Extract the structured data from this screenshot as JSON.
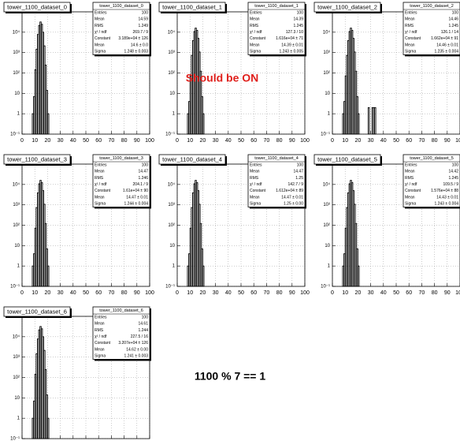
{
  "chart_data": [
    {
      "type": "histogram",
      "title": "tower_1100_dataset_0",
      "log_y": true,
      "grid": true,
      "color": "#000000",
      "bins": [
        8,
        9,
        10,
        11,
        12,
        13,
        14,
        15,
        16,
        17,
        18,
        19,
        20,
        21
      ],
      "values": [
        1,
        7,
        143,
        1470,
        7780,
        21600,
        31800,
        24600,
        10000,
        2140,
        245,
        14,
        1
      ],
      "xlim": [
        0,
        100
      ],
      "xticks": [
        0,
        10,
        20,
        30,
        40,
        50,
        60,
        70,
        80,
        90,
        100
      ],
      "ylim": [
        0.1,
        100000
      ],
      "yticks": [
        {
          "value": 0.1,
          "label": "10⁻¹"
        },
        1,
        10,
        {
          "value": 100,
          "label": "10²"
        },
        {
          "value": 1000,
          "label": "10³"
        },
        {
          "value": 10000,
          "label": "10⁴"
        }
      ],
      "stats": [
        [
          "Entries",
          "100"
        ],
        [
          "Mean",
          "14.59"
        ],
        [
          "RMS",
          "1.249"
        ],
        [
          "χ² / ndf",
          "269.7 / 9"
        ],
        [
          "Constant",
          "3.189e+04 ± 126"
        ],
        [
          "Mean",
          "14.6 ± 0.0"
        ],
        [
          "Sigma",
          "1.248 ± 0.003"
        ]
      ]
    },
    {
      "type": "histogram",
      "title": "tower_1100_dataset_1",
      "log_y": true,
      "grid": true,
      "color": "#000000",
      "bins": [
        8,
        9,
        10,
        11,
        12,
        13,
        14,
        15,
        16,
        17,
        18,
        19,
        20,
        21
      ],
      "values": [
        1,
        4,
        72,
        735,
        3890,
        10800,
        15900,
        12300,
        5000,
        1070,
        122,
        7,
        1
      ],
      "xlim": [
        0,
        100
      ],
      "xticks": [
        0,
        10,
        20,
        30,
        40,
        50,
        60,
        70,
        80,
        90,
        100
      ],
      "ylim": [
        0.1,
        100000
      ],
      "yticks": [
        {
          "value": 0.1,
          "label": "10⁻¹"
        },
        1,
        10,
        {
          "value": 100,
          "label": "10²"
        },
        {
          "value": 1000,
          "label": "10³"
        },
        {
          "value": 10000,
          "label": "10⁴"
        }
      ],
      "stats": [
        [
          "Entries",
          "100"
        ],
        [
          "Mean",
          "14.39"
        ],
        [
          "RMS",
          "1.245"
        ],
        [
          "χ² / ndf",
          "127.3 / 10"
        ],
        [
          "Constant",
          "1.616e+04 ± 71"
        ],
        [
          "Mean",
          "14.39 ± 0.01"
        ],
        [
          "Sigma",
          "1.243 ± 0.005"
        ]
      ]
    },
    {
      "type": "histogram",
      "title": "tower_1100_dataset_2",
      "log_y": true,
      "grid": true,
      "color": "#000000",
      "bins": [
        8,
        9,
        10,
        11,
        12,
        13,
        14,
        15,
        16,
        17,
        18,
        19,
        20,
        21,
        22,
        23,
        24,
        25,
        26,
        27,
        28,
        29,
        30,
        31,
        32,
        33,
        34
      ],
      "values": [
        1,
        4,
        72,
        735,
        3890,
        10800,
        15900,
        12300,
        5000,
        1070,
        122,
        7,
        1,
        0,
        0,
        0,
        0,
        0,
        0,
        0,
        2,
        0,
        0,
        2,
        2,
        2
      ],
      "xlim": [
        0,
        100
      ],
      "xticks": [
        0,
        10,
        20,
        30,
        40,
        50,
        60,
        70,
        80,
        90,
        100
      ],
      "ylim": [
        0.1,
        100000
      ],
      "yticks": [
        {
          "value": 0.1,
          "label": "10⁻¹"
        },
        1,
        10,
        {
          "value": 100,
          "label": "10²"
        },
        {
          "value": 1000,
          "label": "10³"
        },
        {
          "value": 10000,
          "label": "10⁴"
        }
      ],
      "stats": [
        [
          "Entries",
          "100"
        ],
        [
          "Mean",
          "14.46"
        ],
        [
          "RMS",
          "1.245"
        ],
        [
          "χ² / ndf",
          "126.1 / 14"
        ],
        [
          "Constant",
          "1.662e+04 ± 91"
        ],
        [
          "Mean",
          "14.46 ± 0.01"
        ],
        [
          "Sigma",
          "1.235 ± 0.004"
        ]
      ]
    },
    {
      "type": "histogram",
      "title": "tower_1100_dataset_3",
      "log_y": true,
      "grid": true,
      "color": "#000000",
      "bins": [
        8,
        9,
        10,
        11,
        12,
        13,
        14,
        15,
        16,
        17,
        18,
        19,
        20,
        21
      ],
      "values": [
        1,
        4,
        72,
        735,
        3890,
        10800,
        15900,
        12300,
        5000,
        1070,
        122,
        7,
        1
      ],
      "xlim": [
        0,
        100
      ],
      "xticks": [
        0,
        10,
        20,
        30,
        40,
        50,
        60,
        70,
        80,
        90,
        100
      ],
      "ylim": [
        0.1,
        100000
      ],
      "yticks": [
        {
          "value": 0.1,
          "label": "10⁻¹"
        },
        1,
        10,
        {
          "value": 100,
          "label": "10²"
        },
        {
          "value": 1000,
          "label": "10³"
        },
        {
          "value": 10000,
          "label": "10⁴"
        }
      ],
      "stats": [
        [
          "Entries",
          "100"
        ],
        [
          "Mean",
          "14.47"
        ],
        [
          "RMS",
          "1.246"
        ],
        [
          "χ² / ndf",
          "204.1 / 9"
        ],
        [
          "Constant",
          "1.61e+04 ± 90"
        ],
        [
          "Mean",
          "14.47 ± 0.01"
        ],
        [
          "Sigma",
          "1.244 ± 0.004"
        ]
      ]
    },
    {
      "type": "histogram",
      "title": "tower_1100_dataset_4",
      "log_y": true,
      "grid": true,
      "color": "#000000",
      "bins": [
        8,
        9,
        10,
        11,
        12,
        13,
        14,
        15,
        16,
        17,
        18,
        19,
        20,
        21
      ],
      "values": [
        1,
        4,
        72,
        735,
        3890,
        10800,
        15900,
        12300,
        5000,
        1070,
        122,
        7,
        1
      ],
      "xlim": [
        0,
        100
      ],
      "xticks": [
        0,
        10,
        20,
        30,
        40,
        50,
        60,
        70,
        80,
        90,
        100
      ],
      "ylim": [
        0.1,
        100000
      ],
      "yticks": [
        {
          "value": 0.1,
          "label": "10⁻¹"
        },
        1,
        10,
        {
          "value": 100,
          "label": "10²"
        },
        {
          "value": 1000,
          "label": "10³"
        },
        {
          "value": 10000,
          "label": "10⁴"
        }
      ],
      "stats": [
        [
          "Entries",
          "100"
        ],
        [
          "Mean",
          "14.47"
        ],
        [
          "RMS",
          "1.25"
        ],
        [
          "χ² / ndf",
          "142.7 / 9"
        ],
        [
          "Constant",
          "1.612e+04 ± 89"
        ],
        [
          "Mean",
          "14.47 ± 0.01"
        ],
        [
          "Sigma",
          "1.25 ± 0.00"
        ]
      ]
    },
    {
      "type": "histogram",
      "title": "tower_1100_dataset_5",
      "log_y": true,
      "grid": true,
      "color": "#000000",
      "bins": [
        8,
        9,
        10,
        11,
        12,
        13,
        14,
        15,
        16,
        17,
        18,
        19,
        20,
        21
      ],
      "values": [
        1,
        4,
        72,
        735,
        3890,
        10800,
        15900,
        12300,
        5000,
        1070,
        122,
        7,
        1
      ],
      "xlim": [
        0,
        100
      ],
      "xticks": [
        0,
        10,
        20,
        30,
        40,
        50,
        60,
        70,
        80,
        90,
        100
      ],
      "ylim": [
        0.1,
        100000
      ],
      "yticks": [
        {
          "value": 0.1,
          "label": "10⁻¹"
        },
        1,
        10,
        {
          "value": 100,
          "label": "10²"
        },
        {
          "value": 1000,
          "label": "10³"
        },
        {
          "value": 10000,
          "label": "10⁴"
        }
      ],
      "stats": [
        [
          "Entries",
          "100"
        ],
        [
          "Mean",
          "14.42"
        ],
        [
          "RMS",
          "1.245"
        ],
        [
          "χ² / ndf",
          "109.5 / 9"
        ],
        [
          "Constant",
          "1.576e+04 ± 88"
        ],
        [
          "Mean",
          "14.43 ± 0.01"
        ],
        [
          "Sigma",
          "1.243 ± 0.004"
        ]
      ]
    },
    {
      "type": "histogram",
      "title": "tower_1100_dataset_6",
      "log_y": true,
      "grid": true,
      "color": "#000000",
      "bins": [
        8,
        9,
        10,
        11,
        12,
        13,
        14,
        15,
        16,
        17,
        18,
        19,
        20,
        21
      ],
      "values": [
        1,
        7,
        143,
        1470,
        7780,
        21600,
        31800,
        24600,
        10000,
        2140,
        245,
        14,
        1
      ],
      "xlim": [
        0,
        100
      ],
      "xticks": [
        0,
        10,
        20,
        30,
        40,
        50,
        60,
        70,
        80,
        90,
        100
      ],
      "ylim": [
        0.1,
        100000
      ],
      "yticks": [
        {
          "value": 0.1,
          "label": "10⁻¹"
        },
        1,
        10,
        {
          "value": 100,
          "label": "10²"
        },
        {
          "value": 1000,
          "label": "10³"
        },
        {
          "value": 10000,
          "label": "10⁴"
        }
      ],
      "stats": [
        [
          "Entries",
          "100"
        ],
        [
          "Mean",
          "14.61"
        ],
        [
          "RMS",
          "1.244"
        ],
        [
          "χ² / ndf",
          "227.5 / 16"
        ],
        [
          "Constant",
          "3.207e+04 ± 126"
        ],
        [
          "Mean",
          "14.62 ± 0.00"
        ],
        [
          "Sigma",
          "1.241 ± 0.003"
        ]
      ]
    }
  ],
  "annotations": [
    "Should be ON",
    "1100 % 7 == 1"
  ]
}
